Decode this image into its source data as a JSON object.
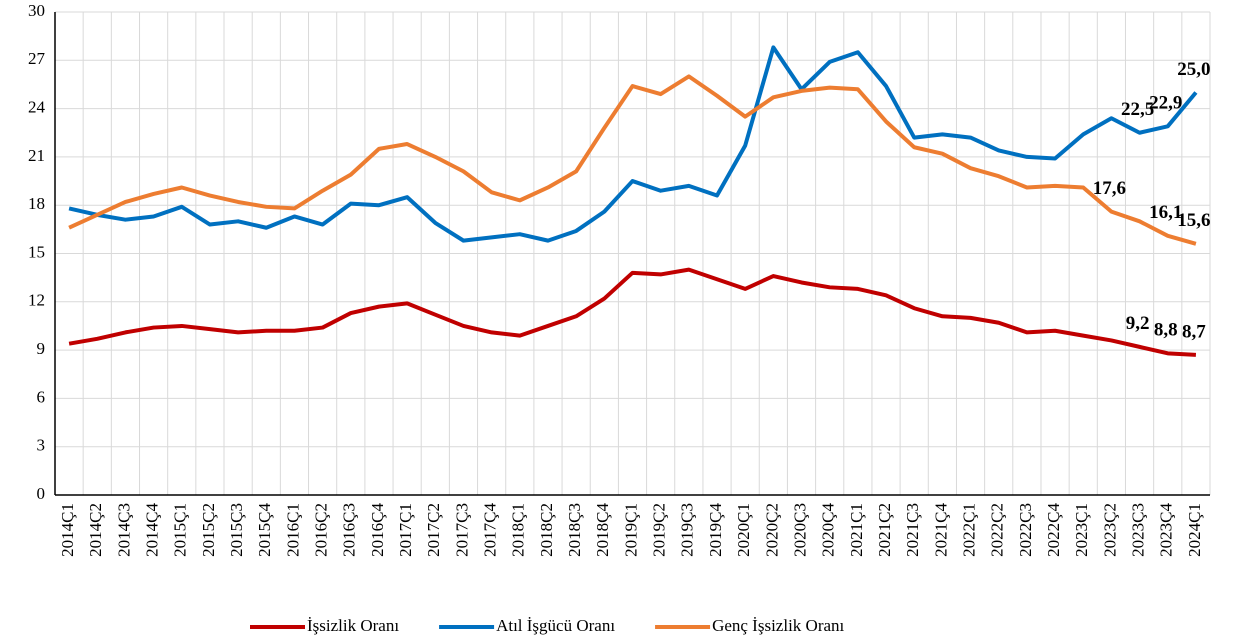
{
  "chart_data": {
    "type": "line",
    "categories": [
      "2014Ç1",
      "2014Ç2",
      "2014Ç3",
      "2014Ç4",
      "2015Ç1",
      "2015Ç2",
      "2015Ç3",
      "2015Ç4",
      "2016Ç1",
      "2016Ç2",
      "2016Ç3",
      "2016Ç4",
      "2017Ç1",
      "2017Ç2",
      "2017Ç3",
      "2017Ç4",
      "2018Ç1",
      "2018Ç2",
      "2018Ç3",
      "2018Ç4",
      "2019Ç1",
      "2019Ç2",
      "2019Ç3",
      "2019Ç4",
      "2020Ç1",
      "2020Ç2",
      "2020Ç3",
      "2020Ç4",
      "2021Ç1",
      "2021Ç2",
      "2021Ç3",
      "2021Ç4",
      "2022Ç1",
      "2022Ç2",
      "2022Ç3",
      "2022Ç4",
      "2023Ç1",
      "2023Ç2",
      "2023Ç3",
      "2023Ç4",
      "2024Ç1"
    ],
    "series": [
      {
        "name": "İşsizlik Oranı",
        "color": "#c00000",
        "values": [
          9.4,
          9.7,
          10.1,
          10.4,
          10.5,
          10.3,
          10.1,
          10.2,
          10.2,
          10.4,
          11.3,
          11.7,
          11.9,
          11.2,
          10.5,
          10.1,
          9.9,
          10.5,
          11.1,
          12.2,
          13.8,
          13.7,
          14.0,
          13.4,
          12.8,
          13.6,
          13.2,
          12.9,
          12.8,
          12.4,
          11.6,
          11.1,
          11.0,
          10.7,
          10.1,
          10.2,
          9.9,
          9.6,
          9.2,
          8.8,
          8.7
        ],
        "value_labels": [
          null,
          null,
          null,
          null,
          null,
          null,
          null,
          null,
          null,
          null,
          null,
          null,
          null,
          null,
          null,
          null,
          null,
          null,
          null,
          null,
          null,
          null,
          null,
          null,
          null,
          null,
          null,
          null,
          null,
          null,
          null,
          null,
          null,
          null,
          null,
          null,
          null,
          null,
          "9,2",
          "8,8",
          "8,7"
        ]
      },
      {
        "name": "Atıl İşgücü Oranı",
        "color": "#0070c0",
        "values": [
          17.8,
          17.4,
          17.1,
          17.3,
          17.9,
          16.8,
          17.0,
          16.6,
          17.3,
          16.8,
          18.1,
          18.0,
          18.5,
          16.9,
          15.8,
          16.0,
          16.2,
          15.8,
          16.4,
          17.6,
          19.5,
          18.9,
          19.2,
          18.6,
          21.7,
          27.8,
          25.2,
          26.9,
          27.5,
          25.4,
          22.2,
          22.4,
          22.2,
          21.4,
          21.0,
          20.9,
          22.4,
          23.4,
          22.5,
          22.9,
          25.0
        ],
        "value_labels": [
          null,
          null,
          null,
          null,
          null,
          null,
          null,
          null,
          null,
          null,
          null,
          null,
          null,
          null,
          null,
          null,
          null,
          null,
          null,
          null,
          null,
          null,
          null,
          null,
          null,
          null,
          null,
          null,
          null,
          null,
          null,
          null,
          null,
          null,
          null,
          null,
          null,
          null,
          "22,5",
          "22,9",
          "25,0"
        ]
      },
      {
        "name": "Genç İşsizlik Oranı",
        "color": "#ed7d31",
        "values": [
          16.6,
          17.4,
          18.2,
          18.7,
          19.1,
          18.6,
          18.2,
          17.9,
          17.8,
          18.9,
          19.9,
          21.5,
          21.8,
          21.0,
          20.1,
          18.8,
          18.3,
          19.1,
          20.1,
          22.8,
          25.4,
          24.9,
          26.0,
          24.8,
          23.5,
          24.7,
          25.1,
          25.3,
          25.2,
          23.2,
          21.6,
          21.2,
          20.3,
          19.8,
          19.1,
          19.2,
          19.1,
          17.6,
          17.0,
          16.1,
          15.6
        ],
        "value_labels": [
          null,
          null,
          null,
          null,
          null,
          null,
          null,
          null,
          null,
          null,
          null,
          null,
          null,
          null,
          null,
          null,
          null,
          null,
          null,
          null,
          null,
          null,
          null,
          null,
          null,
          null,
          null,
          null,
          null,
          null,
          null,
          null,
          null,
          null,
          null,
          null,
          null,
          "17,6",
          null,
          "16,1",
          "15,6"
        ]
      }
    ],
    "ylim": [
      0,
      30
    ],
    "yticks": [
      0,
      3,
      6,
      9,
      12,
      15,
      18,
      21,
      24,
      27,
      30
    ],
    "grid": true,
    "legend": "bottom"
  }
}
